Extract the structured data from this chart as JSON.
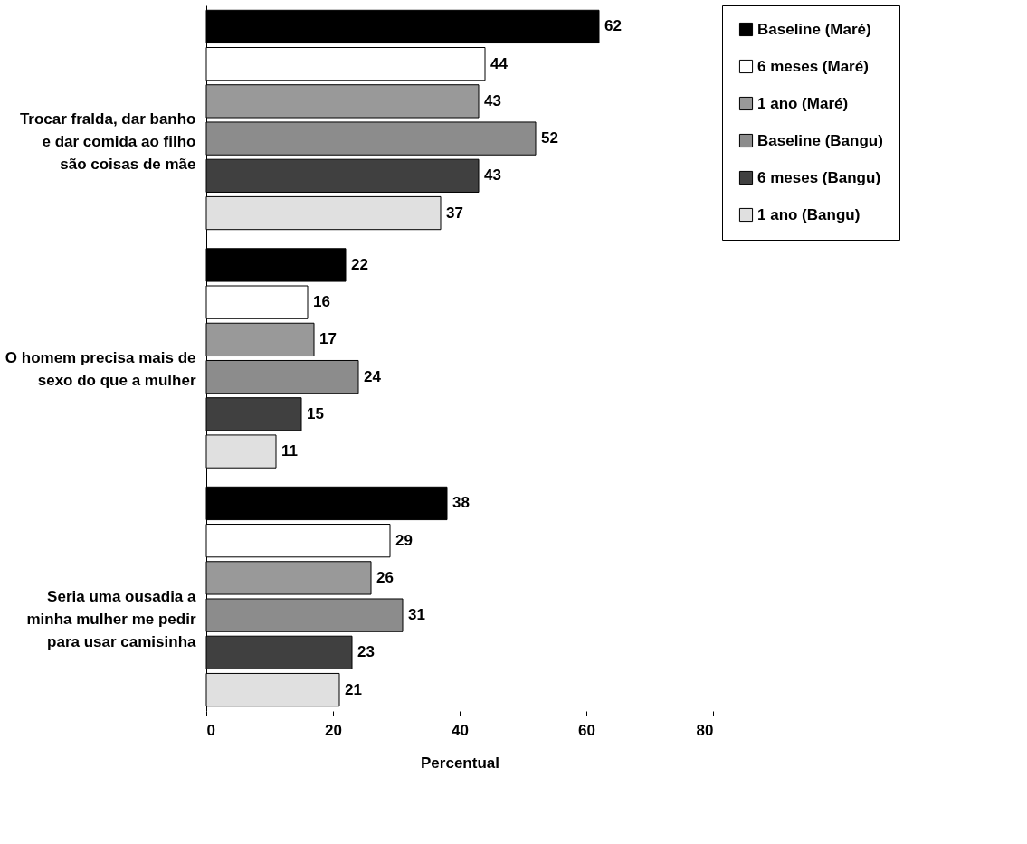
{
  "chart_data": {
    "type": "bar",
    "orientation": "horizontal",
    "xlabel": "Percentual",
    "categories": [
      "Trocar fralda, dar banho e dar comida ao filho são coisas de mãe",
      "O homem precisa mais de sexo do que a mulher",
      "Seria uma ousadia a minha mulher me pedir para usar camisinha"
    ],
    "series": [
      {
        "name": "Baseline (Maré)",
        "color": "#000000",
        "values": [
          62,
          22,
          38
        ]
      },
      {
        "name": "6 meses (Maré)",
        "color": "#ffffff",
        "values": [
          44,
          16,
          29
        ]
      },
      {
        "name": "1 ano (Maré)",
        "color": "#999999",
        "values": [
          43,
          17,
          26
        ]
      },
      {
        "name": "Baseline (Bangu)",
        "color": "#8c8c8c",
        "values": [
          52,
          24,
          31
        ]
      },
      {
        "name": "6 meses (Bangu)",
        "color": "#404040",
        "values": [
          43,
          15,
          23
        ]
      },
      {
        "name": "1 ano (Bangu)",
        "color": "#e0e0e0",
        "values": [
          37,
          11,
          21
        ]
      }
    ],
    "xlim": [
      0,
      80
    ],
    "xticks": [
      0,
      20,
      40,
      60,
      80
    ],
    "data_labels": true,
    "grid": false,
    "legend": "right"
  }
}
